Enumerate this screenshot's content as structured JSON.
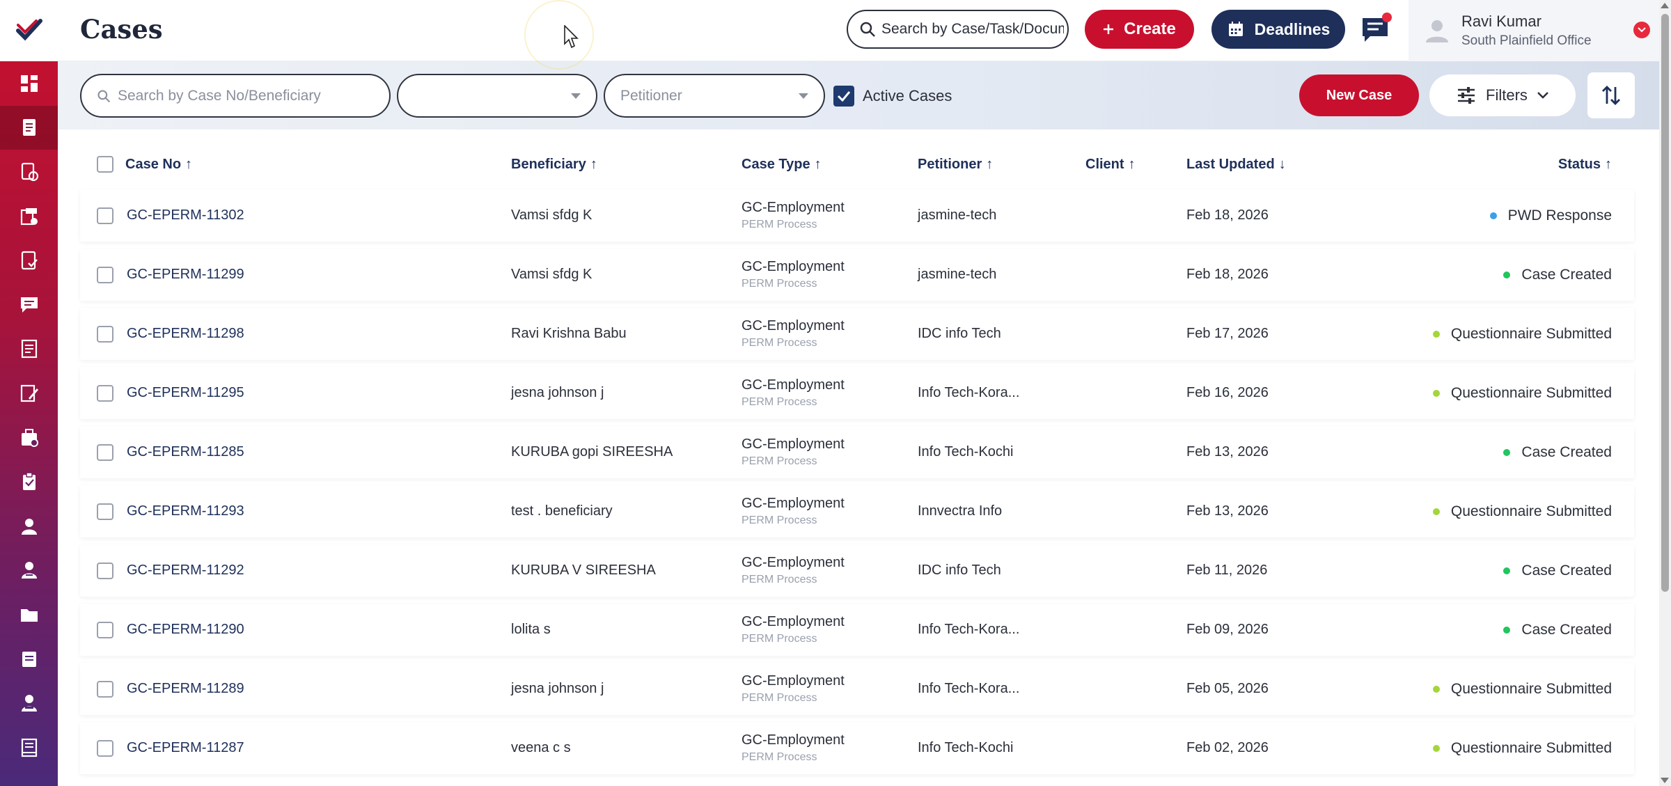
{
  "header": {
    "page_title": "Cases",
    "global_search_placeholder": "Search by Case/Task/Document",
    "create_label": "Create",
    "deadlines_label": "Deadlines",
    "user": {
      "name": "Ravi Kumar",
      "office": "South Plainfield Office"
    }
  },
  "sidebar": {
    "items": [
      {
        "icon": "dashboard-icon"
      },
      {
        "icon": "cases-icon",
        "active": true
      },
      {
        "icon": "documents-icon"
      },
      {
        "icon": "forms-icon"
      },
      {
        "icon": "tasks-icon"
      },
      {
        "icon": "messages-icon"
      },
      {
        "icon": "reports-icon"
      },
      {
        "icon": "edit-icon"
      },
      {
        "icon": "billing-icon"
      },
      {
        "icon": "clipboard-icon"
      },
      {
        "icon": "user-icon"
      },
      {
        "icon": "contacts-icon"
      },
      {
        "icon": "folder-icon"
      },
      {
        "icon": "notes-icon"
      },
      {
        "icon": "team-icon"
      },
      {
        "icon": "ledger-icon"
      }
    ]
  },
  "filters": {
    "search_placeholder": "Search by Case No/Beneficiary",
    "select1_value": "",
    "petitioner_placeholder": "Petitioner",
    "active_cases_label": "Active Cases",
    "new_case_label": "New Case",
    "filters_label": "Filters"
  },
  "table": {
    "columns": {
      "case_no": "Case No",
      "beneficiary": "Beneficiary",
      "case_type": "Case Type",
      "petitioner": "Petitioner",
      "client": "Client",
      "last_updated": "Last Updated",
      "status": "Status"
    },
    "rows": [
      {
        "case_no": "GC-EPERM-11302",
        "beneficiary": "Vamsi sfdg K",
        "case_type": "GC-Employment",
        "process": "PERM Process",
        "petitioner": "jasmine-tech",
        "client": "",
        "last_updated": "Feb 18, 2026",
        "status": "PWD Response",
        "status_color": "#3aa0e8"
      },
      {
        "case_no": "GC-EPERM-11299",
        "beneficiary": "Vamsi sfdg K",
        "case_type": "GC-Employment",
        "process": "PERM Process",
        "petitioner": "jasmine-tech",
        "client": "",
        "last_updated": "Feb 18, 2026",
        "status": "Case Created",
        "status_color": "#22c55e"
      },
      {
        "case_no": "GC-EPERM-11298",
        "beneficiary": "Ravi Krishna Babu",
        "case_type": "GC-Employment",
        "process": "PERM Process",
        "petitioner": "IDC info Tech",
        "client": "",
        "last_updated": "Feb 17, 2026",
        "status": "Questionnaire Submitted",
        "status_color": "#a3d63b"
      },
      {
        "case_no": "GC-EPERM-11295",
        "beneficiary": "jesna johnson j",
        "case_type": "GC-Employment",
        "process": "PERM Process",
        "petitioner": "Info Tech-Kora...",
        "client": "",
        "last_updated": "Feb 16, 2026",
        "status": "Questionnaire Submitted",
        "status_color": "#a3d63b"
      },
      {
        "case_no": "GC-EPERM-11285",
        "beneficiary": "KURUBA gopi SIREESHA",
        "case_type": "GC-Employment",
        "process": "PERM Process",
        "petitioner": "Info Tech-Kochi",
        "client": "",
        "last_updated": "Feb 13, 2026",
        "status": "Case Created",
        "status_color": "#22c55e"
      },
      {
        "case_no": "GC-EPERM-11293",
        "beneficiary": "test . beneficiary",
        "case_type": "GC-Employment",
        "process": "PERM Process",
        "petitioner": "Innvectra Info",
        "client": "",
        "last_updated": "Feb 13, 2026",
        "status": "Questionnaire Submitted",
        "status_color": "#a3d63b"
      },
      {
        "case_no": "GC-EPERM-11292",
        "beneficiary": "KURUBA V SIREESHA",
        "case_type": "GC-Employment",
        "process": "PERM Process",
        "petitioner": "IDC info Tech",
        "client": "",
        "last_updated": "Feb 11, 2026",
        "status": "Case Created",
        "status_color": "#22c55e"
      },
      {
        "case_no": "GC-EPERM-11290",
        "beneficiary": "lolita s",
        "case_type": "GC-Employment",
        "process": "PERM Process",
        "petitioner": "Info Tech-Kora...",
        "client": "",
        "last_updated": "Feb 09, 2026",
        "status": "Case Created",
        "status_color": "#22c55e"
      },
      {
        "case_no": "GC-EPERM-11289",
        "beneficiary": "jesna johnson j",
        "case_type": "GC-Employment",
        "process": "PERM Process",
        "petitioner": "Info Tech-Kora...",
        "client": "",
        "last_updated": "Feb 05, 2026",
        "status": "Questionnaire Submitted",
        "status_color": "#a3d63b"
      },
      {
        "case_no": "GC-EPERM-11287",
        "beneficiary": "veena c s",
        "case_type": "GC-Employment",
        "process": "PERM Process",
        "petitioner": "Info Tech-Kochi",
        "client": "",
        "last_updated": "Feb 02, 2026",
        "status": "Questionnaire Submitted",
        "status_color": "#a3d63b"
      }
    ]
  },
  "colors": {
    "brand_red": "#c8102e",
    "navy": "#1e2f5a"
  }
}
